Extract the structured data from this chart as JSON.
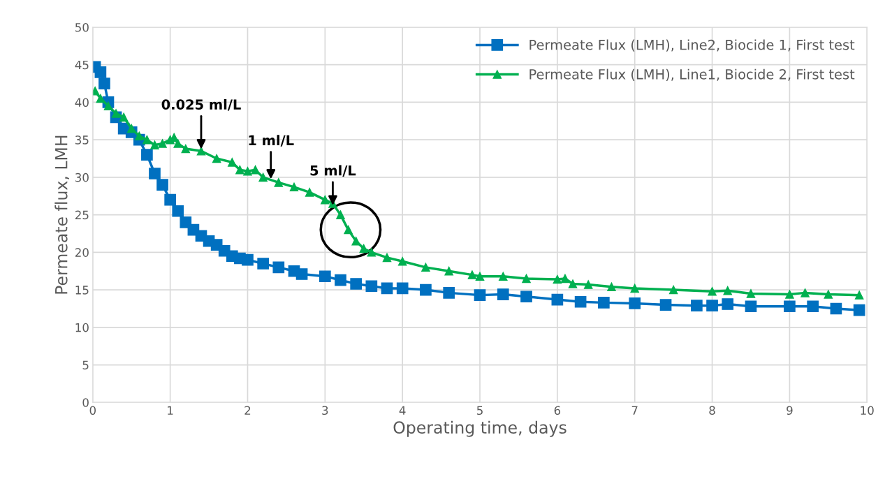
{
  "chart_data": {
    "type": "line",
    "xlabel": "Operating time, days",
    "ylabel": "Permeate flux, LMH",
    "xlim": [
      0,
      10
    ],
    "xticks": [
      0,
      1,
      2,
      3,
      4,
      5,
      6,
      7,
      8,
      9,
      10
    ],
    "ylim": [
      0,
      50
    ],
    "yticks": [
      0,
      5,
      10,
      15,
      20,
      25,
      30,
      35,
      40,
      45,
      50
    ],
    "grid": true,
    "legend": "top right",
    "series": [
      {
        "name": "Permeate Flux (LMH), Line2, Biocide 1, First test",
        "color": "#0070c0",
        "marker": "square",
        "x": [
          0.03,
          0.1,
          0.15,
          0.2,
          0.3,
          0.4,
          0.5,
          0.6,
          0.7,
          0.8,
          0.9,
          1.0,
          1.1,
          1.2,
          1.3,
          1.4,
          1.5,
          1.6,
          1.7,
          1.8,
          1.9,
          2.0,
          2.2,
          2.4,
          2.6,
          2.7,
          3.0,
          3.2,
          3.4,
          3.6,
          3.8,
          4.0,
          4.3,
          4.6,
          5.0,
          5.3,
          5.6,
          6.0,
          6.3,
          6.6,
          7.0,
          7.4,
          7.8,
          8.0,
          8.2,
          8.5,
          9.0,
          9.3,
          9.6,
          9.9
        ],
        "values": [
          44.7,
          44,
          42.5,
          40,
          38,
          36.5,
          36,
          35,
          33,
          30.5,
          29,
          27,
          25.5,
          24,
          23,
          22.2,
          21.5,
          21,
          20.2,
          19.5,
          19.2,
          19,
          18.5,
          18,
          17.5,
          17.1,
          16.8,
          16.3,
          15.8,
          15.5,
          15.2,
          15.2,
          15,
          14.6,
          14.3,
          14.4,
          14.1,
          13.7,
          13.4,
          13.3,
          13.2,
          13,
          12.9,
          12.9,
          13.1,
          12.8,
          12.8,
          12.8,
          12.5,
          12.3
        ]
      },
      {
        "name": "Permeate Flux (LMH), Line1, Biocide 2, First test",
        "color": "#00b050",
        "marker": "triangle",
        "x": [
          0.03,
          0.1,
          0.2,
          0.3,
          0.4,
          0.5,
          0.6,
          0.7,
          0.8,
          0.9,
          1.0,
          1.05,
          1.1,
          1.2,
          1.4,
          1.6,
          1.8,
          1.9,
          2.0,
          2.1,
          2.2,
          2.4,
          2.6,
          2.8,
          3.0,
          3.1,
          3.2,
          3.3,
          3.4,
          3.5,
          3.6,
          3.8,
          4.0,
          4.3,
          4.6,
          4.9,
          5.0,
          5.3,
          5.6,
          6.0,
          6.1,
          6.2,
          6.4,
          6.7,
          7.0,
          7.5,
          8.0,
          8.2,
          8.5,
          9.0,
          9.2,
          9.5,
          9.9
        ],
        "values": [
          41.5,
          40.5,
          39.5,
          38.5,
          38,
          36.5,
          35.5,
          35,
          34.3,
          34.5,
          35,
          35.3,
          34.5,
          33.8,
          33.5,
          32.5,
          32,
          31,
          30.8,
          31,
          30,
          29.3,
          28.7,
          28,
          27,
          26.5,
          25,
          23,
          21.5,
          20.5,
          20,
          19.3,
          18.8,
          18,
          17.5,
          17,
          16.8,
          16.8,
          16.5,
          16.4,
          16.5,
          15.8,
          15.7,
          15.4,
          15.2,
          15,
          14.8,
          14.9,
          14.5,
          14.4,
          14.6,
          14.4,
          14.3
        ]
      }
    ],
    "annotations": [
      {
        "text": "0.025 ml/L",
        "x": 1.4,
        "y": 33.5
      },
      {
        "text": "1 ml/L",
        "x": 2.3,
        "y": 29.5
      },
      {
        "text": "5 ml/L",
        "x": 3.1,
        "y": 26
      }
    ]
  }
}
